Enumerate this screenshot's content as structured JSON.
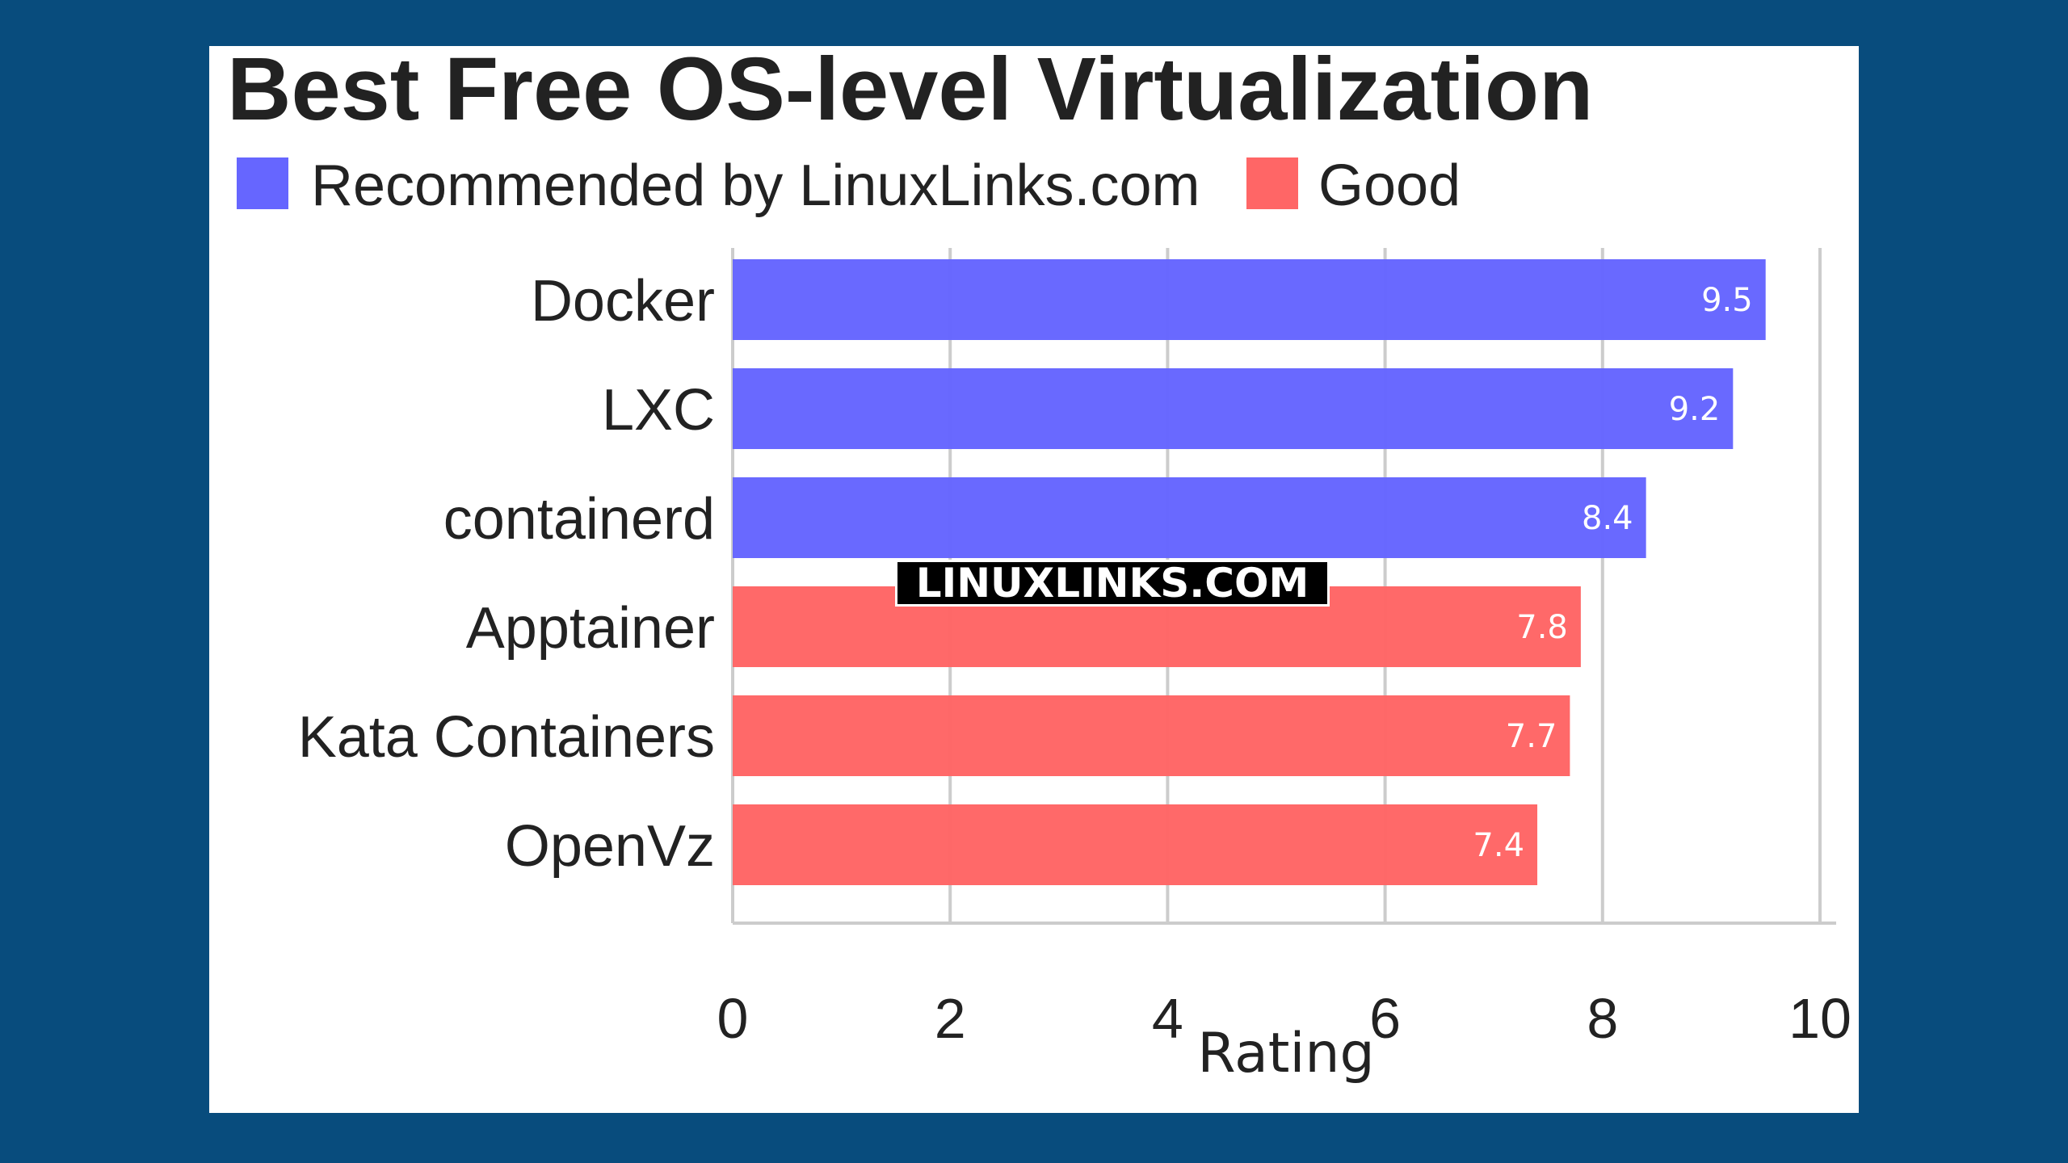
{
  "chart_data": {
    "type": "bar",
    "orientation": "horizontal",
    "title": "Best Free OS-level Virtualization",
    "categories": [
      "Docker",
      "LXC",
      "containerd",
      "Apptainer",
      "Kata Containers",
      "OpenVz"
    ],
    "values": [
      9.5,
      9.2,
      8.4,
      7.8,
      7.7,
      7.4
    ],
    "value_labels": [
      "9.5",
      "9.2",
      "8.4",
      "7.8",
      "7.7",
      "7.4"
    ],
    "groups": [
      "Recommended by LinuxLinks.com",
      "Recommended by LinuxLinks.com",
      "Recommended by LinuxLinks.com",
      "Good",
      "Good",
      "Good"
    ],
    "legend": [
      {
        "name": "Recommended by LinuxLinks.com",
        "color": "#6666ff"
      },
      {
        "name": "Good",
        "color": "#ff6666"
      }
    ],
    "legend_placement": "top-left",
    "xlabel": "Rating",
    "ylabel": "",
    "xlim": [
      0,
      10
    ],
    "xticks": [
      "0",
      "2",
      "4",
      "6",
      "8",
      "10"
    ],
    "grid": true
  },
  "watermark": "LINUXLINKS.COM"
}
